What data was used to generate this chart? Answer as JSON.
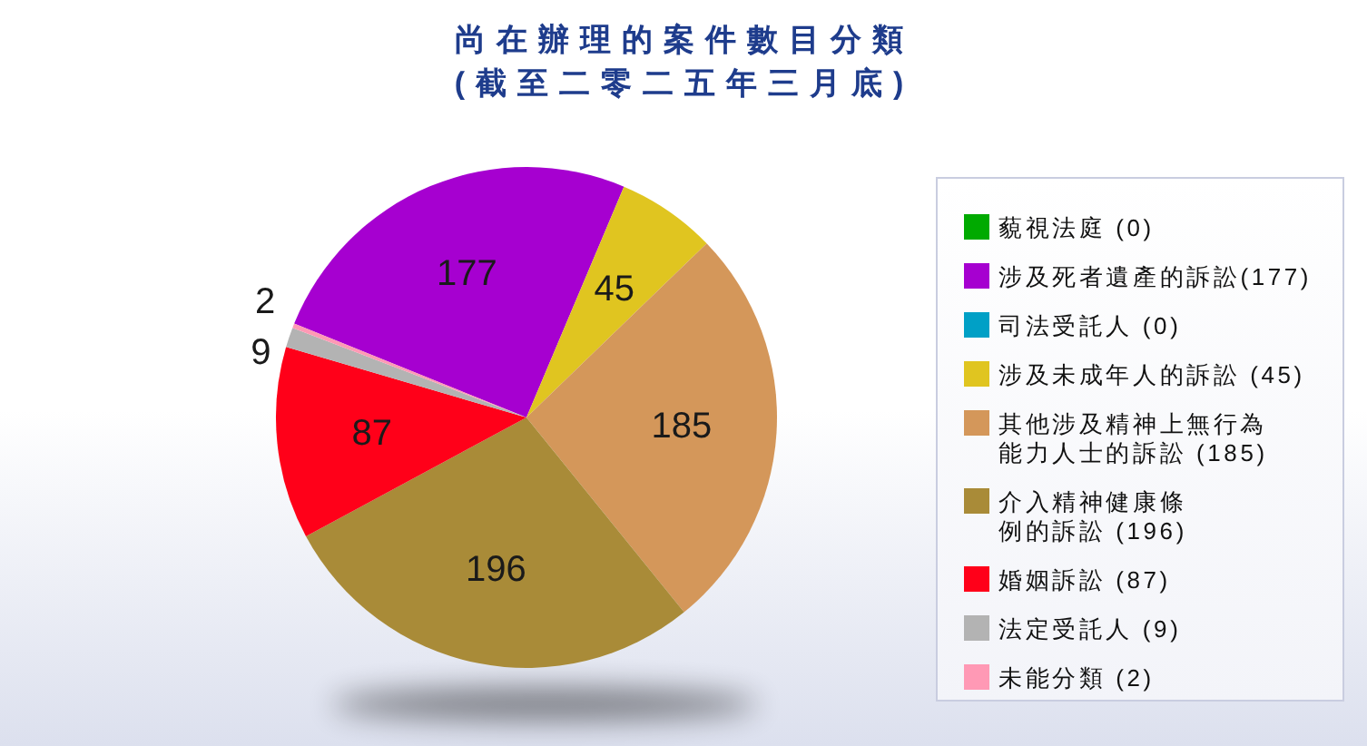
{
  "chart_data": {
    "type": "pie",
    "title": "尚在辦理的案件數目分類",
    "subtitle": "(截至二零二五年三月底)",
    "categories": [
      "藐視法庭 (0)",
      "涉及死者遺產的訴訟(177)",
      "司法受託人 (0)",
      "涉及未成年人的訴訟 (45)",
      "其他涉及精神上無行為能力人士的訴訟 (185)",
      "介入精神健康條例的訴訟 (196)",
      "婚姻訴訟 (87)",
      "法定受託人 (9)",
      "未能分類 (2)"
    ],
    "values": [
      0,
      177,
      0,
      45,
      185,
      196,
      87,
      9,
      2
    ],
    "colors": [
      "#00aa00",
      "#a600d0",
      "#00a0c6",
      "#e0c520",
      "#d4975a",
      "#a98b38",
      "#ff0019",
      "#b3b3b3",
      "#ff99b5"
    ],
    "data_labels": true,
    "legend": "right"
  }
}
